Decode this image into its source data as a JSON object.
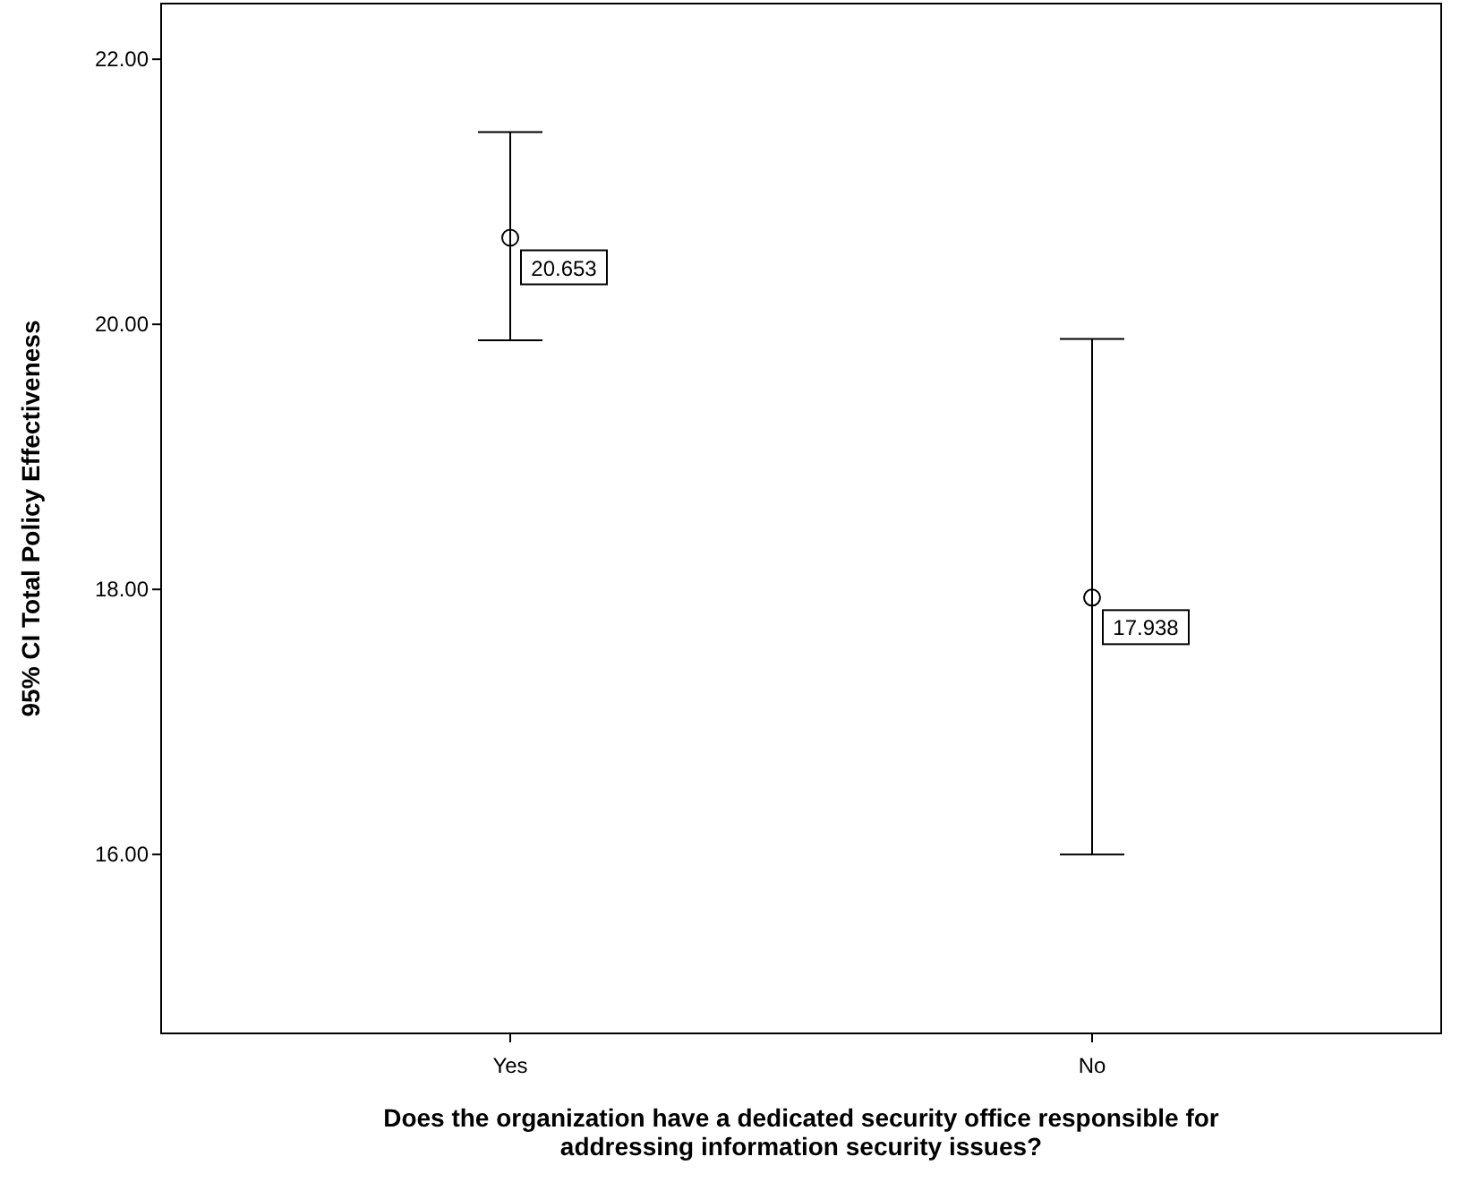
{
  "chart_data": {
    "type": "scatter",
    "ylabel": "95% CI Total Policy Effectiveness",
    "xlabel": "Does the organization have a dedicated security office responsible for addressing information security issues?",
    "categories": [
      "Yes",
      "No"
    ],
    "series": [
      {
        "color": "#000000",
        "values": [
          20.653,
          17.938
        ],
        "errors": [
          [
            19.88,
            21.45
          ],
          [
            16.0,
            19.89
          ]
        ]
      }
    ],
    "ylim": [
      14.65,
      22.42
    ],
    "yticks": [
      {
        "value": 16,
        "label": "16.00"
      },
      {
        "value": 18,
        "label": "18.00"
      },
      {
        "value": 20,
        "label": "20.00"
      },
      {
        "value": 22,
        "label": "22.00"
      }
    ],
    "data_labels": true,
    "marker": "circle",
    "grid": false
  }
}
